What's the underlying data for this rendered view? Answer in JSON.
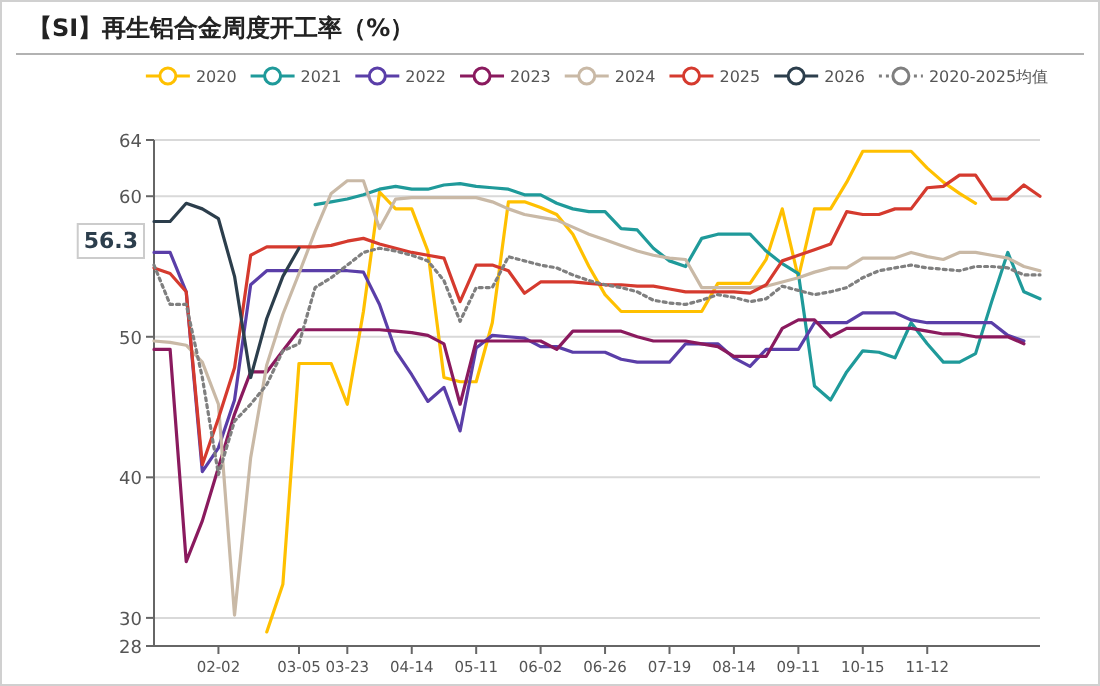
{
  "chart_data": {
    "type": "line",
    "title": "【SI】再生铝合金周度开工率（%）",
    "categories": [
      null,
      null,
      null,
      null,
      "02-02",
      null,
      null,
      null,
      null,
      "03-05",
      null,
      null,
      "03-23",
      null,
      null,
      null,
      "04-14",
      null,
      null,
      null,
      "05-11",
      null,
      null,
      null,
      "06-02",
      null,
      null,
      null,
      "06-26",
      null,
      null,
      null,
      "07-19",
      null,
      null,
      null,
      "08-14",
      null,
      null,
      null,
      "09-11",
      null,
      null,
      null,
      "10-15",
      null,
      null,
      null,
      "11-12",
      null,
      null,
      null,
      null,
      null,
      null,
      null
    ],
    "ylim": [
      28,
      64
    ],
    "yticks": [
      28,
      30,
      40,
      50,
      60,
      64
    ],
    "grid": "y",
    "legend": "top",
    "annotations": [
      "56.3"
    ],
    "series": [
      {
        "name": "2020",
        "color": "#ffc000",
        "values": [
          null,
          null,
          null,
          null,
          null,
          null,
          null,
          29.0,
          32.4,
          48.1,
          48.1,
          48.1,
          45.2,
          51.8,
          60.3,
          59.1,
          59.1,
          56.1,
          47.1,
          46.8,
          46.8,
          51.0,
          59.6,
          59.6,
          59.2,
          58.7,
          57.3,
          55.0,
          53.0,
          51.8,
          51.8,
          51.8,
          51.8,
          51.8,
          51.8,
          53.8,
          53.8,
          53.8,
          55.5,
          59.1,
          54.2,
          59.1,
          59.1,
          61.0,
          63.2,
          63.2,
          63.2,
          63.2,
          62.0,
          61.0,
          60.2,
          59.5,
          null,
          null,
          null,
          null
        ]
      },
      {
        "name": "2021",
        "color": "#1f9a9a",
        "values": [
          null,
          null,
          null,
          null,
          null,
          null,
          null,
          null,
          null,
          null,
          59.4,
          59.6,
          59.8,
          60.1,
          60.5,
          60.7,
          60.5,
          60.5,
          60.8,
          60.9,
          60.7,
          60.6,
          60.5,
          60.1,
          60.1,
          59.5,
          59.1,
          58.9,
          58.9,
          57.7,
          57.6,
          56.3,
          55.4,
          55.0,
          57.0,
          57.3,
          57.3,
          57.3,
          56.1,
          55.2,
          54.5,
          46.5,
          45.5,
          47.5,
          49.0,
          48.9,
          48.5,
          51.0,
          49.5,
          48.2,
          48.2,
          48.8,
          52.5,
          56.0,
          53.2,
          52.7
        ]
      },
      {
        "name": "2022",
        "color": "#5a3ea8",
        "values": [
          56.0,
          56.0,
          53.2,
          40.4,
          42.1,
          45.5,
          53.7,
          54.7,
          54.7,
          54.7,
          54.7,
          54.7,
          54.7,
          54.6,
          52.3,
          49.0,
          47.3,
          45.4,
          46.4,
          43.3,
          49.2,
          50.1,
          50.0,
          49.9,
          49.3,
          49.3,
          48.9,
          48.9,
          48.9,
          48.4,
          48.2,
          48.2,
          48.2,
          49.5,
          49.5,
          49.5,
          48.5,
          47.9,
          49.1,
          49.1,
          49.1,
          51.0,
          51.0,
          51.0,
          51.7,
          51.7,
          51.7,
          51.2,
          51.0,
          51.0,
          51.0,
          51.0,
          51.0,
          50.1,
          49.7,
          null
        ]
      },
      {
        "name": "2023",
        "color": "#8a1a5e",
        "values": [
          49.1,
          49.1,
          34.0,
          36.9,
          40.7,
          44.5,
          47.5,
          47.5,
          49.0,
          50.5,
          50.5,
          50.5,
          50.5,
          50.5,
          50.5,
          50.4,
          50.3,
          50.1,
          49.5,
          45.2,
          49.7,
          49.7,
          49.7,
          49.7,
          49.7,
          49.1,
          50.4,
          50.4,
          50.4,
          50.4,
          50.0,
          49.7,
          49.7,
          49.7,
          49.5,
          49.3,
          48.6,
          48.6,
          48.6,
          50.6,
          51.2,
          51.2,
          50.0,
          50.6,
          50.6,
          50.6,
          50.6,
          50.6,
          50.4,
          50.2,
          50.2,
          50.0,
          50.0,
          50.0,
          49.5,
          null
        ]
      },
      {
        "name": "2024",
        "color": "#c9b9a6",
        "values": [
          49.7,
          49.6,
          49.4,
          48.2,
          45.2,
          30.2,
          41.4,
          48.0,
          51.6,
          54.5,
          57.5,
          60.2,
          61.1,
          61.1,
          57.7,
          59.8,
          59.9,
          59.9,
          59.9,
          59.9,
          59.9,
          59.6,
          59.1,
          58.7,
          58.5,
          58.3,
          57.8,
          57.3,
          56.9,
          56.5,
          56.1,
          55.8,
          55.6,
          55.5,
          53.5,
          53.5,
          53.5,
          53.5,
          53.6,
          53.9,
          54.2,
          54.6,
          54.9,
          54.9,
          55.6,
          55.6,
          55.6,
          56.0,
          55.7,
          55.5,
          56.0,
          56.0,
          55.8,
          55.6,
          55.0,
          54.7
        ]
      },
      {
        "name": "2025",
        "color": "#d53a2e",
        "values": [
          54.9,
          54.5,
          53.2,
          40.9,
          44.2,
          47.8,
          55.8,
          56.4,
          56.4,
          56.4,
          56.4,
          56.5,
          56.8,
          57.0,
          56.6,
          56.3,
          56.0,
          55.8,
          55.6,
          52.5,
          55.1,
          55.1,
          54.7,
          53.1,
          53.9,
          53.9,
          53.9,
          53.8,
          53.7,
          53.7,
          53.6,
          53.6,
          53.4,
          53.2,
          53.2,
          53.2,
          53.2,
          53.1,
          53.7,
          55.4,
          55.8,
          56.2,
          56.6,
          58.9,
          58.7,
          58.7,
          59.1,
          59.1,
          60.6,
          60.7,
          61.5,
          61.5,
          59.8,
          59.8,
          60.8,
          60.0
        ]
      },
      {
        "name": "2026",
        "color": "#2c3e4c",
        "values": [
          58.2,
          58.2,
          59.5,
          59.1,
          58.4,
          54.3,
          47.1,
          51.3,
          54.3,
          56.3,
          null,
          null,
          null,
          null,
          null,
          null,
          null,
          null,
          null,
          null,
          null,
          null,
          null,
          null,
          null,
          null,
          null,
          null,
          null,
          null,
          null,
          null,
          null,
          null,
          null,
          null,
          null,
          null,
          null,
          null,
          null,
          null,
          null,
          null,
          null,
          null,
          null,
          null,
          null,
          null,
          null,
          null,
          null,
          null,
          null,
          null
        ]
      },
      {
        "name": "2020-2025均值",
        "color": "#7f7f7f",
        "line_style": "dotted",
        "values": [
          55.1,
          52.3,
          52.3,
          47.1,
          40.2,
          44.0,
          45.2,
          46.6,
          49.0,
          49.5,
          53.5,
          54.2,
          55.1,
          56.0,
          56.3,
          56.1,
          55.8,
          55.4,
          54.0,
          51.1,
          53.5,
          53.5,
          55.7,
          55.4,
          55.1,
          54.9,
          54.4,
          54.0,
          53.7,
          53.5,
          53.2,
          52.6,
          52.4,
          52.3,
          52.6,
          53.0,
          52.8,
          52.5,
          52.7,
          53.6,
          53.3,
          53.0,
          53.2,
          53.5,
          54.2,
          54.7,
          54.9,
          55.1,
          54.9,
          54.8,
          54.7,
          55.0,
          55.0,
          54.9,
          54.4,
          54.4
        ]
      }
    ]
  }
}
